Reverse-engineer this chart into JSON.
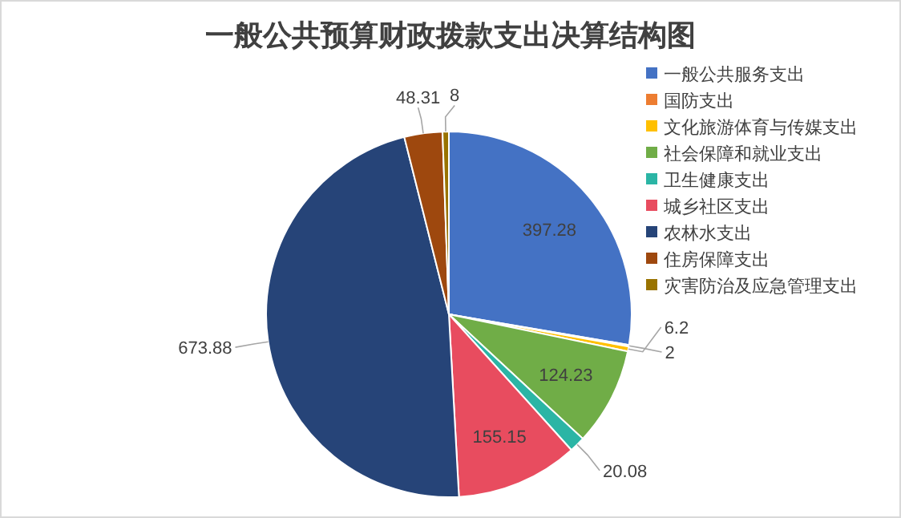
{
  "chart_data": {
    "type": "pie",
    "title": "一般公共预算财政拨款支出决算结构图",
    "categories": [
      "一般公共服务支出",
      "国防支出",
      "文化旅游体育与传媒支出",
      "社会保障和就业支出",
      "卫生健康支出",
      "城乡社区支出",
      "农林水支出",
      "住房保障支出",
      "灾害防治及应急管理支出"
    ],
    "values": [
      397.28,
      2,
      6.2,
      124.23,
      20.08,
      155.15,
      673.88,
      48.31,
      8
    ],
    "colors": [
      "#4472c4",
      "#ed7d31",
      "#ffc000",
      "#70ad47",
      "#2bb5a5",
      "#e84c5f",
      "#264478",
      "#9e480e",
      "#997300"
    ],
    "data_labels": true,
    "legend": "right"
  }
}
